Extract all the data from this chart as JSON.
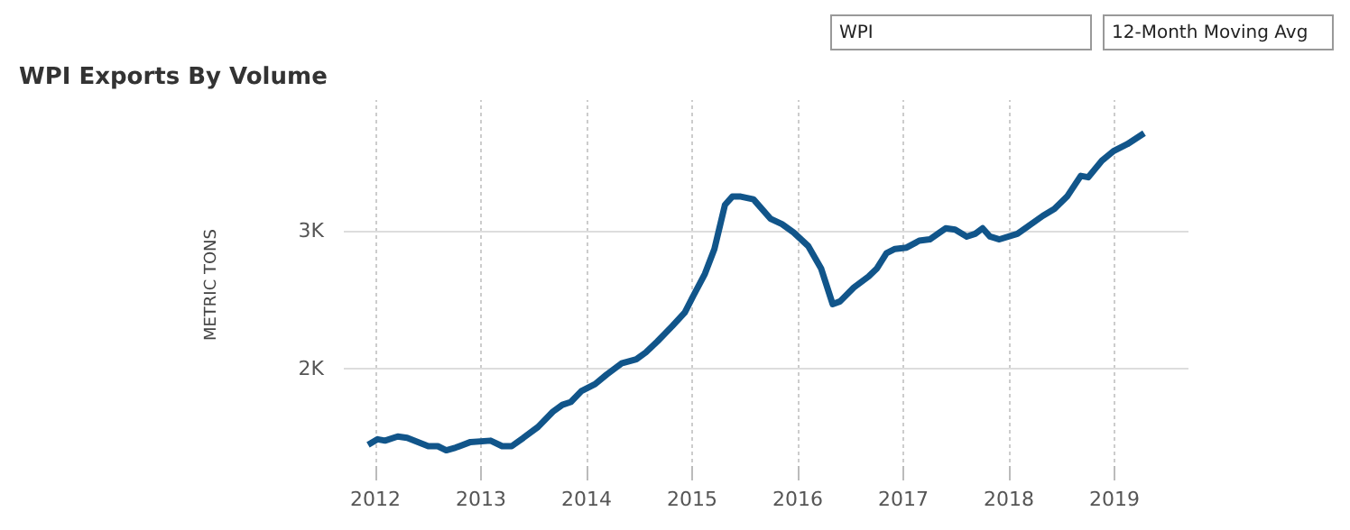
{
  "chart_data": {
    "type": "line",
    "title": "WPI Exports By Volume",
    "ylabel": "METRIC TONS",
    "annotations": [
      "WPI",
      "12-Month Moving Avg"
    ],
    "x": [
      2011.93,
      2012.02,
      2012.09,
      2012.21,
      2012.3,
      2012.5,
      2012.59,
      2012.67,
      2012.76,
      2012.9,
      2013.09,
      2013.2,
      2013.29,
      2013.4,
      2013.54,
      2013.68,
      2013.77,
      2013.85,
      2013.95,
      2014.08,
      2014.19,
      2014.33,
      2014.47,
      2014.56,
      2014.67,
      2014.81,
      2014.93,
      2015.01,
      2015.12,
      2015.21,
      2015.31,
      2015.38,
      2015.46,
      2015.58,
      2015.74,
      2015.85,
      2015.96,
      2016.1,
      2016.22,
      2016.33,
      2016.4,
      2016.53,
      2016.67,
      2016.75,
      2016.84,
      2016.92,
      2017.03,
      2017.15,
      2017.25,
      2017.4,
      2017.49,
      2017.6,
      2017.68,
      2017.75,
      2017.82,
      2017.91,
      2018.08,
      2018.32,
      2018.43,
      2018.55,
      2018.68,
      2018.75,
      2018.88,
      2018.99,
      2019.12,
      2019.28
    ],
    "series": [
      {
        "color": "#11558a",
        "values": [
          1450,
          1490,
          1480,
          1510,
          1500,
          1440,
          1440,
          1410,
          1430,
          1470,
          1480,
          1440,
          1440,
          1500,
          1580,
          1690,
          1740,
          1760,
          1840,
          1890,
          1960,
          2040,
          2070,
          2120,
          2200,
          2310,
          2410,
          2530,
          2690,
          2870,
          3190,
          3250,
          3250,
          3230,
          3090,
          3050,
          2990,
          2890,
          2730,
          2470,
          2490,
          2590,
          2670,
          2730,
          2840,
          2870,
          2880,
          2930,
          2940,
          3020,
          3010,
          2960,
          2980,
          3020,
          2960,
          2940,
          2980,
          3110,
          3160,
          3250,
          3400,
          3390,
          3510,
          3580,
          3630,
          3710
        ]
      }
    ],
    "xlim": [
      2011.7,
      2019.7
    ],
    "xticks": [
      2012,
      2013,
      2014,
      2015,
      2016,
      2017,
      2018,
      2019
    ],
    "ylim": [
      1270,
      3950
    ],
    "yticks": [
      {
        "value": 2000,
        "label": "2K"
      },
      {
        "value": 3000,
        "label": "3K"
      }
    ],
    "grid": true,
    "line_style": "solid",
    "marker": "none"
  }
}
